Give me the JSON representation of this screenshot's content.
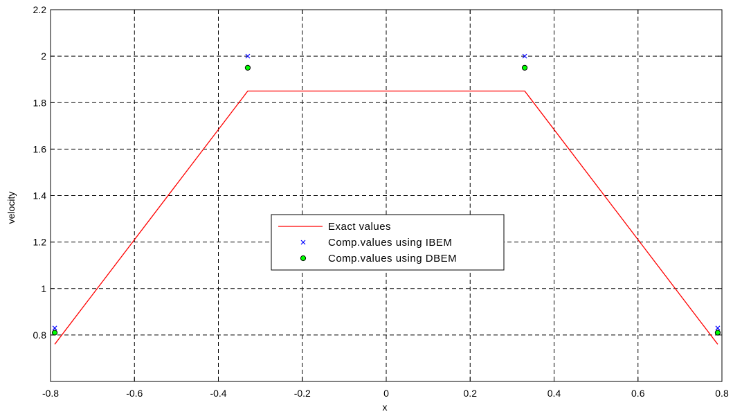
{
  "chart_data": {
    "type": "line",
    "xlabel": "x",
    "ylabel": "velocity",
    "xlim": [
      -0.8,
      0.8
    ],
    "ylim": [
      0.6,
      2.2
    ],
    "xticks": [
      -0.8,
      -0.6,
      -0.4,
      -0.2,
      0,
      0.2,
      0.4,
      0.6,
      0.8
    ],
    "yticks": [
      0.8,
      1,
      1.2,
      1.4,
      1.6,
      1.8,
      2,
      2.2
    ],
    "xtick_labels": [
      "-0.8",
      "-0.6",
      "-0.4",
      "-0.2",
      "0",
      "0.2",
      "0.4",
      "0.6",
      "0.8"
    ],
    "ytick_labels": [
      "0.8",
      "1",
      "1.2",
      "1.4",
      "1.6",
      "1.8",
      "2",
      "2.2"
    ],
    "grid": true,
    "legend_position": "center",
    "series": [
      {
        "name": "Exact values",
        "style": "line",
        "color": "#ff0000",
        "x": [
          -0.79,
          -0.33,
          0.33,
          0.79
        ],
        "y": [
          0.76,
          1.85,
          1.85,
          0.76
        ]
      },
      {
        "name": "Comp.values using IBEM",
        "style": "marker-x",
        "color": "#0000ff",
        "x": [
          -0.79,
          -0.33,
          0.33,
          0.79
        ],
        "y": [
          0.83,
          2.0,
          2.0,
          0.83
        ]
      },
      {
        "name": "Comp.values using DBEM",
        "style": "marker-circle",
        "color": "#00ff00",
        "x": [
          -0.79,
          -0.33,
          0.33,
          0.79
        ],
        "y": [
          0.81,
          1.95,
          1.95,
          0.81
        ]
      }
    ]
  }
}
